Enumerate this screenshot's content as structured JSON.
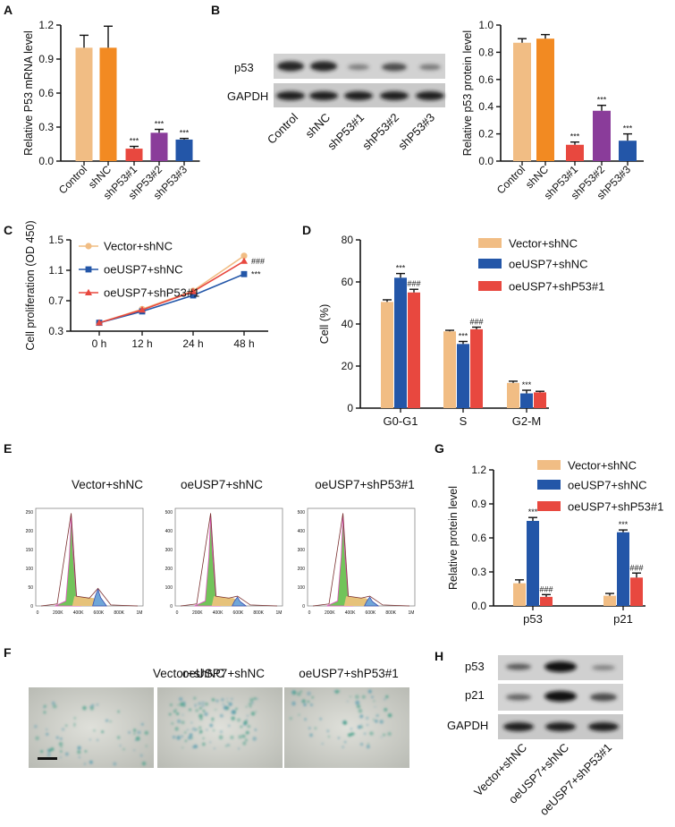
{
  "panel_labels": {
    "a": "A",
    "b": "B",
    "c": "C",
    "d": "D",
    "e": "E",
    "f": "F",
    "g": "G",
    "h": "H"
  },
  "colors": {
    "control": "#f1bd84",
    "shnc": "#f28a22",
    "sh1": "#e8483f",
    "sh2": "#8a3c9a",
    "sh3": "#2356a8",
    "vector": "#f1bd84",
    "oe": "#2356a8",
    "oesh": "#e8483f",
    "ink": "#111111"
  },
  "chart_data": [
    {
      "id": "A",
      "type": "bar",
      "ylabel": "Relative P53 mRNA level",
      "categories": [
        "Control",
        "shNC",
        "shP53#1",
        "shP53#2",
        "shP53#3"
      ],
      "values": [
        1.0,
        1.0,
        0.11,
        0.25,
        0.19
      ],
      "errors": [
        0.11,
        0.19,
        0.02,
        0.03,
        0.01
      ],
      "annotations": [
        "",
        "",
        "***",
        "***",
        "***"
      ],
      "ylim": [
        0,
        1.2
      ],
      "yticks": [
        "0.0",
        "0.3",
        "0.6",
        "0.9",
        "1.2"
      ]
    },
    {
      "id": "B",
      "type": "bar",
      "ylabel": "Relative p53 protein level",
      "categories": [
        "Control",
        "shNC",
        "shP53#1",
        "shP53#2",
        "shP53#3"
      ],
      "values": [
        0.87,
        0.9,
        0.12,
        0.37,
        0.15
      ],
      "errors": [
        0.03,
        0.03,
        0.02,
        0.04,
        0.05
      ],
      "annotations": [
        "",
        "",
        "***",
        "***",
        "***"
      ],
      "ylim": [
        0,
        1.0
      ],
      "yticks": [
        "0.0",
        "0.2",
        "0.4",
        "0.6",
        "0.8",
        "1.0"
      ]
    },
    {
      "id": "C",
      "type": "line",
      "ylabel": "Cell proliferation (OD 450)",
      "categories": [
        "0 h",
        "12 h",
        "24 h",
        "48 h"
      ],
      "series": [
        {
          "name": "Vector+shNC",
          "values": [
            0.41,
            0.59,
            0.83,
            1.29
          ]
        },
        {
          "name": "oeUSP7+shNC",
          "values": [
            0.41,
            0.56,
            0.77,
            1.05
          ]
        },
        {
          "name": "oeUSP7+shP53#1",
          "values": [
            0.41,
            0.58,
            0.82,
            1.22
          ]
        }
      ],
      "end_annotations": [
        "",
        "***",
        "###"
      ],
      "ylim": [
        0.3,
        1.5
      ],
      "yticks": [
        "0.3",
        "0.7",
        "1.1",
        "1.5"
      ]
    },
    {
      "id": "D",
      "type": "bar",
      "ylabel": "Cell (%)",
      "categories": [
        "G0-G1",
        "S",
        "G2-M"
      ],
      "series": [
        {
          "name": "Vector+shNC",
          "values": [
            50.5,
            36.5,
            12
          ],
          "errors": [
            1,
            0.5,
            0.8
          ],
          "annotations": [
            "",
            "",
            ""
          ]
        },
        {
          "name": "oeUSP7+shNC",
          "values": [
            62,
            30.5,
            7
          ],
          "errors": [
            2,
            1.2,
            1.5
          ],
          "annotations": [
            "***",
            "***",
            "***"
          ]
        },
        {
          "name": "oeUSP7+shP53#1",
          "values": [
            55,
            37.5,
            7.5
          ],
          "errors": [
            1.5,
            1,
            0.5
          ],
          "annotations": [
            "###",
            "###",
            ""
          ]
        }
      ],
      "ylim": [
        0,
        80
      ],
      "yticks": [
        "0",
        "20",
        "40",
        "60",
        "80"
      ]
    },
    {
      "id": "G",
      "type": "bar",
      "ylabel": "Relative protein level",
      "categories": [
        "p53",
        "p21"
      ],
      "series": [
        {
          "name": "Vector+shNC",
          "values": [
            0.2,
            0.09
          ],
          "errors": [
            0.03,
            0.02
          ],
          "annotations": [
            "",
            ""
          ]
        },
        {
          "name": "oeUSP7+shNC",
          "values": [
            0.75,
            0.65
          ],
          "errors": [
            0.03,
            0.02
          ],
          "annotations": [
            "***",
            "***"
          ]
        },
        {
          "name": "oeUSP7+shP53#1",
          "values": [
            0.08,
            0.25
          ],
          "errors": [
            0.02,
            0.04
          ],
          "annotations": [
            "###",
            "###"
          ]
        }
      ],
      "ylim": [
        0,
        1.2
      ],
      "yticks": [
        "0.0",
        "0.3",
        "0.6",
        "0.9",
        "1.2"
      ]
    }
  ],
  "blot_b": {
    "rows": [
      "p53",
      "GAPDH"
    ],
    "lanes": [
      "Control",
      "shNC",
      "shP53#1",
      "shP53#2",
      "shP53#3"
    ]
  },
  "flow_e": {
    "titles": [
      "Vector+shNC",
      "oeUSP7+shNC",
      "oeUSP7+shP53#1"
    ],
    "yticks_first": [
      "250",
      "200",
      "150",
      "100",
      "50",
      "0"
    ],
    "yticks_other": [
      "500",
      "400",
      "300",
      "200",
      "100",
      "0"
    ],
    "xticks": [
      "0",
      "200K",
      "400K",
      "600K",
      "800K",
      "1M"
    ]
  },
  "stain_f": {
    "titles": [
      "Vector+shNC",
      "oeUSP7+shNC",
      "oeUSP7+shP53#1"
    ]
  },
  "blot_h": {
    "rows": [
      "p53",
      "p21",
      "GAPDH"
    ],
    "lanes": [
      "Vector+shNC",
      "oeUSP7+shNC",
      "oeUSP7+shP53#1"
    ]
  }
}
